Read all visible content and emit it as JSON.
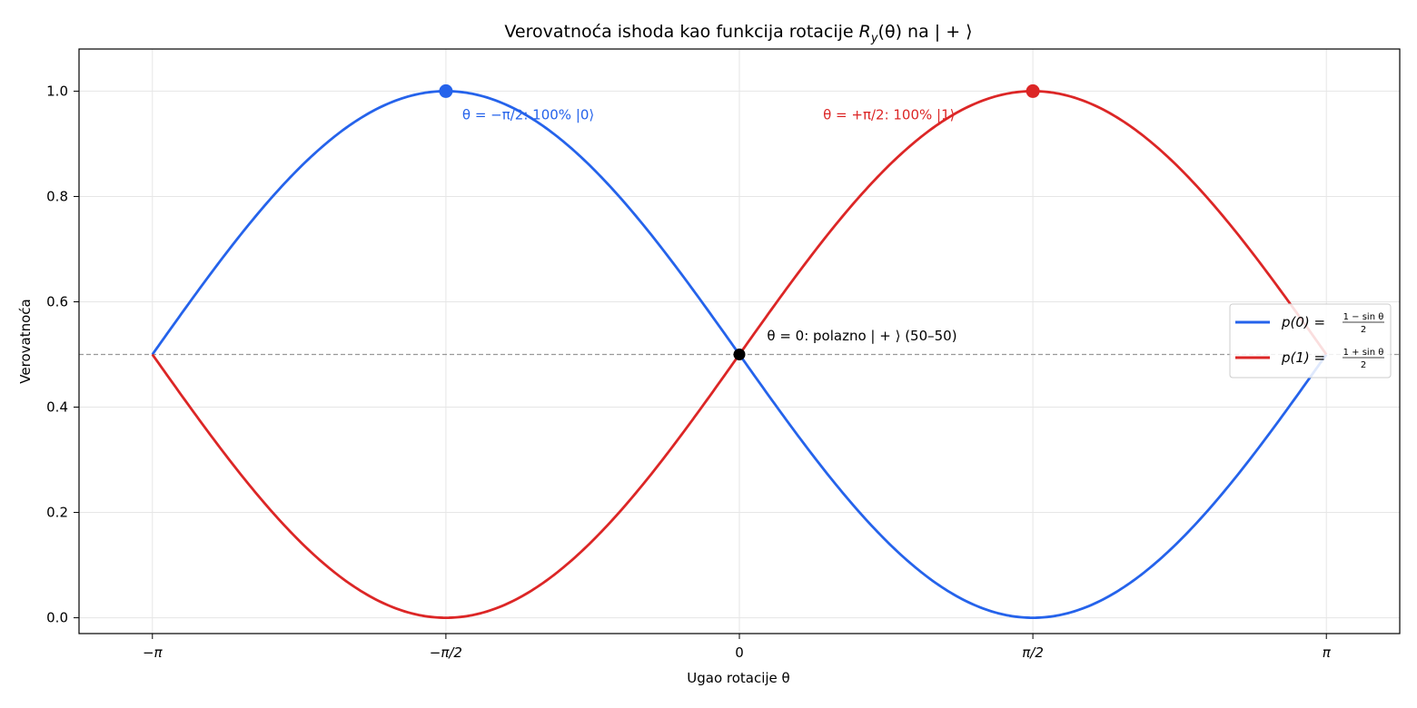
{
  "chart_data": {
    "type": "line",
    "title_parts": [
      "Verovatnoća ishoda kao funkcija rotacije ",
      "R",
      "y",
      "(θ) na ",
      "|",
      " + ",
      "⟩"
    ],
    "xlabel": "Ugao rotacije θ",
    "ylabel": "Verovatnoća",
    "xlim": [
      -3.5343,
      3.5343
    ],
    "ylim": [
      -0.03,
      1.08
    ],
    "x_ticks": [
      {
        "value": -3.14159,
        "label": "−π"
      },
      {
        "value": -1.5708,
        "label": "−π/2"
      },
      {
        "value": 0,
        "label": "0"
      },
      {
        "value": 1.5708,
        "label": "π/2"
      },
      {
        "value": 3.14159,
        "label": "π"
      }
    ],
    "y_ticks": [
      {
        "value": 0.0,
        "label": "0.0"
      },
      {
        "value": 0.2,
        "label": "0.2"
      },
      {
        "value": 0.4,
        "label": "0.4"
      },
      {
        "value": 0.6,
        "label": "0.6"
      },
      {
        "value": 0.8,
        "label": "0.8"
      },
      {
        "value": 1.0,
        "label": "1.0"
      }
    ],
    "grid": true,
    "x_range": [
      -3.14159,
      3.14159
    ],
    "series": [
      {
        "name": "p(0) = (1 − sin θ)/2",
        "legend_prefix": "p(0) = ",
        "legend_num": "1 − sin θ",
        "legend_den": "2",
        "formula": "(1 - sin(x))/2",
        "sign": -1,
        "color": "#2563eb"
      },
      {
        "name": "p(1) = (1 + sin θ)/2",
        "legend_prefix": "p(1) = ",
        "legend_num": "1 + sin θ",
        "legend_den": "2",
        "formula": "(1 + sin(x))/2",
        "sign": 1,
        "color": "#dc2626"
      }
    ],
    "reference_line": {
      "y": 0.5,
      "color": "#999999",
      "style": "dashed"
    },
    "markers": [
      {
        "x": -1.5708,
        "y": 1.0,
        "color": "#2563eb"
      },
      {
        "x": 1.5708,
        "y": 1.0,
        "color": "#dc2626"
      },
      {
        "x": 0,
        "y": 0.5,
        "color": "#000000"
      }
    ],
    "annotations": [
      {
        "text": "θ = −π/2: 100% |0⟩",
        "x": -1.5708,
        "y": 0.955,
        "color": "#2563eb"
      },
      {
        "text": "θ = +π/2: 100% |1⟩",
        "x": 0.37,
        "y": 0.955,
        "color": "#dc2626"
      },
      {
        "text": "θ = 0: polazno | + ⟩ (50–50)",
        "x": 0.07,
        "y": 0.535,
        "color": "#000000"
      }
    ],
    "legend_position": "center-right"
  }
}
